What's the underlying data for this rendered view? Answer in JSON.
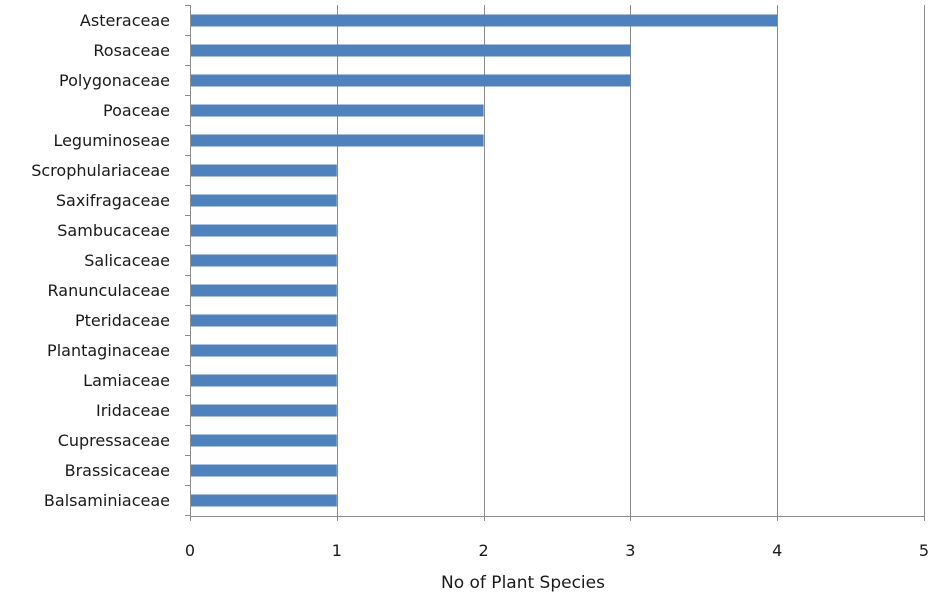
{
  "chart_data": {
    "type": "bar",
    "orientation": "horizontal",
    "title": "",
    "xlabel": "No of Plant Species",
    "ylabel": "",
    "xlim": [
      0,
      5
    ],
    "xticks": [
      "0",
      "1",
      "2",
      "3",
      "4",
      "5"
    ],
    "grid": true,
    "legend": "none",
    "bar_color": "#4F81BD",
    "categories": [
      "Asteraceae",
      "Rosaceae",
      "Polygonaceae",
      "Poaceae",
      "Leguminoseae",
      "Scrophulariaceae",
      "Saxifragaceae",
      "Sambucaceae",
      "Salicaceae",
      "Ranunculaceae",
      "Pteridaceae",
      "Plantaginaceae",
      "Lamiaceae",
      "Iridaceae",
      "Cupressaceae",
      "Brassicaceae",
      "Balsaminiaceae"
    ],
    "values": [
      4,
      3,
      3,
      2,
      2,
      1,
      1,
      1,
      1,
      1,
      1,
      1,
      1,
      1,
      1,
      1,
      1
    ]
  }
}
